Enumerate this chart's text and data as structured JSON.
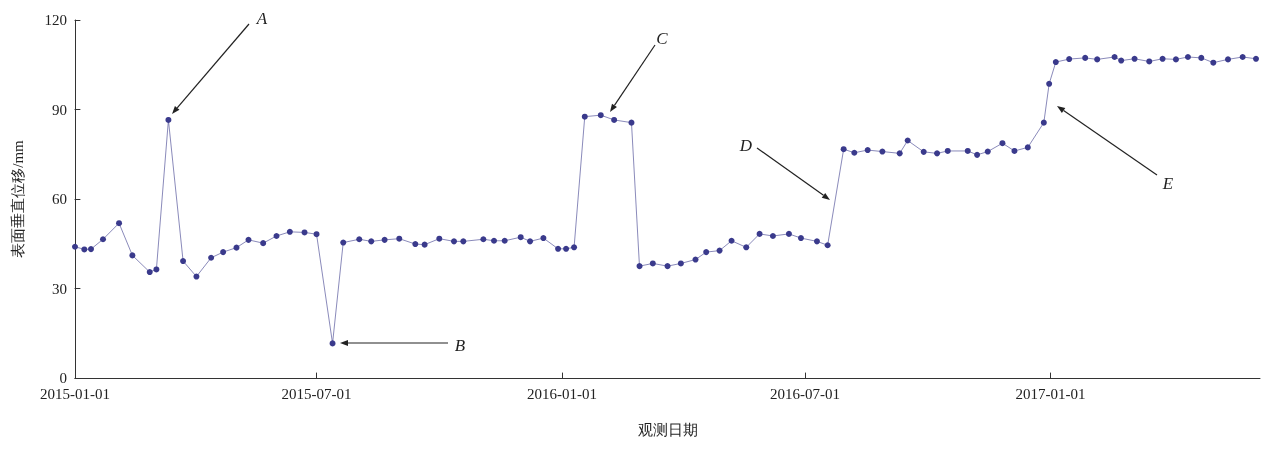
{
  "chart_data": {
    "type": "line",
    "xlabel": "观测日期",
    "ylabel": "表面垂直位移/mm",
    "xlim": [
      "2015-01-01",
      "2017-06-07"
    ],
    "xticks": [
      "2015-01-01",
      "2015-07-01",
      "2016-01-01",
      "2016-07-01",
      "2017-01-01"
    ],
    "ylim": [
      0,
      120
    ],
    "yticks": [
      0,
      30,
      60,
      90,
      120
    ],
    "grid": false,
    "marker": "circle",
    "line_style": "solid",
    "series": [
      {
        "color": "#3a3a8c",
        "x": [
          "2015-01-01",
          "2015-01-08",
          "2015-01-13",
          "2015-01-22",
          "2015-02-03",
          "2015-02-13",
          "2015-02-26",
          "2015-03-03",
          "2015-03-12",
          "2015-03-23",
          "2015-04-02",
          "2015-04-13",
          "2015-04-22",
          "2015-05-02",
          "2015-05-11",
          "2015-05-22",
          "2015-06-01",
          "2015-06-11",
          "2015-06-22",
          "2015-07-01",
          "2015-07-13",
          "2015-07-21",
          "2015-08-02",
          "2015-08-11",
          "2015-08-21",
          "2015-09-01",
          "2015-09-13",
          "2015-09-20",
          "2015-10-01",
          "2015-10-12",
          "2015-10-19",
          "2015-11-03",
          "2015-11-11",
          "2015-11-19",
          "2015-12-01",
          "2015-12-08",
          "2015-12-18",
          "2015-12-29",
          "2016-01-04",
          "2016-01-10",
          "2016-01-18",
          "2016-01-30",
          "2016-02-09",
          "2016-02-22",
          "2016-02-28",
          "2016-03-09",
          "2016-03-20",
          "2016-03-30",
          "2016-04-10",
          "2016-04-18",
          "2016-04-28",
          "2016-05-07",
          "2016-05-18",
          "2016-05-28",
          "2016-06-07",
          "2016-06-19",
          "2016-06-28",
          "2016-07-10",
          "2016-07-18",
          "2016-07-30",
          "2016-08-07",
          "2016-08-17",
          "2016-08-28",
          "2016-09-10",
          "2016-09-16",
          "2016-09-28",
          "2016-10-08",
          "2016-10-16",
          "2016-10-31",
          "2016-11-07",
          "2016-11-15",
          "2016-11-26",
          "2016-12-05",
          "2016-12-15",
          "2016-12-27",
          "2016-12-31",
          "2017-01-05",
          "2017-01-15",
          "2017-01-27",
          "2017-02-05",
          "2017-02-18",
          "2017-02-23",
          "2017-03-05",
          "2017-03-16",
          "2017-03-26",
          "2017-04-05",
          "2017-04-14",
          "2017-04-24",
          "2017-05-03",
          "2017-05-14",
          "2017-05-25",
          "2017-06-04"
        ],
        "values": [
          44.0,
          43.1,
          43.2,
          46.5,
          51.9,
          41.1,
          35.5,
          36.4,
          86.5,
          39.2,
          34.0,
          40.3,
          42.2,
          43.7,
          46.3,
          45.2,
          47.6,
          49.0,
          48.8,
          48.2,
          11.6,
          45.4,
          46.5,
          45.8,
          46.3,
          46.7,
          44.9,
          44.7,
          46.7,
          45.8,
          45.8,
          46.5,
          46.0,
          46.0,
          47.2,
          45.8,
          46.9,
          43.3,
          43.3,
          43.8,
          87.6,
          88.1,
          86.5,
          85.6,
          37.5,
          38.4,
          37.5,
          38.4,
          39.7,
          42.2,
          42.7,
          46.0,
          43.8,
          48.3,
          47.6,
          48.3,
          46.9,
          45.8,
          44.5,
          76.7,
          75.5,
          76.4,
          75.9,
          75.3,
          79.6,
          75.8,
          75.3,
          76.1,
          76.1,
          74.8,
          75.9,
          78.7,
          76.1,
          77.3,
          85.6,
          98.6,
          105.9,
          106.9,
          107.3,
          106.8,
          107.6,
          106.4,
          107.0,
          106.1,
          107.0,
          106.8,
          107.6,
          107.3,
          105.7,
          106.8,
          107.6,
          107.0
        ]
      }
    ],
    "annotations": [
      "A",
      "B",
      "C",
      "D",
      "E"
    ]
  }
}
